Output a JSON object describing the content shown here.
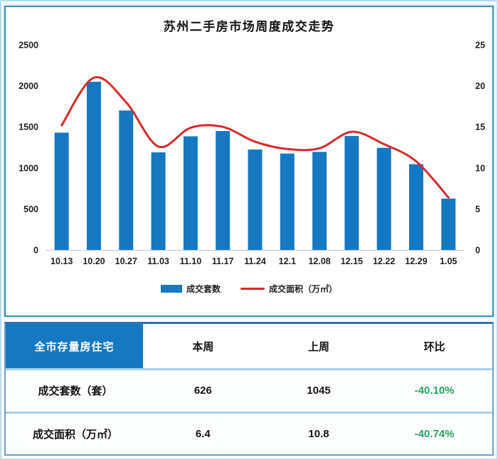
{
  "chart": {
    "title": "苏州二手房市场周度成交走势"
  },
  "chart_data": {
    "type": "combo",
    "title": "苏州二手房市场周度成交走势",
    "categories": [
      "10.13",
      "10.20",
      "10.27",
      "11.03",
      "11.10",
      "11.17",
      "11.24",
      "12.1",
      "12.08",
      "12.15",
      "12.22",
      "12.29",
      "1.05"
    ],
    "series": [
      {
        "name": "成交套数",
        "type": "bar",
        "axis": "left",
        "color": "#1778c2",
        "values": [
          1430,
          2050,
          1700,
          1190,
          1385,
          1450,
          1225,
          1175,
          1195,
          1390,
          1245,
          1045,
          626
        ]
      },
      {
        "name": "成交面积（万㎡）",
        "type": "line",
        "axis": "right",
        "color": "#d62b2b",
        "values": [
          15.2,
          21.0,
          18.0,
          12.6,
          14.9,
          15.0,
          13.2,
          12.3,
          12.4,
          14.4,
          12.9,
          10.8,
          6.4
        ]
      }
    ],
    "left_axis": {
      "min": 0,
      "max": 2500,
      "step": 500
    },
    "right_axis": {
      "min": 0,
      "max": 25,
      "step": 5
    },
    "grid": false,
    "legend_position": "bottom"
  },
  "table": {
    "header": [
      "全市存量房住宅",
      "本周",
      "上周",
      "环比"
    ],
    "rows": [
      {
        "label": "成交套数（套）",
        "this_week": "626",
        "last_week": "1045",
        "wow": "-40.10%"
      },
      {
        "label": "成交面积（万㎡）",
        "this_week": "6.4",
        "last_week": "10.8",
        "wow": "-40.74%"
      }
    ]
  },
  "colors": {
    "bar_blue": "#1778c2",
    "line_red": "#d62b2b",
    "header_blue": "#1778c2",
    "change_green": "#27a35f",
    "panel_border": "#3e8cb8",
    "row_divider": "#a9cfe9"
  }
}
